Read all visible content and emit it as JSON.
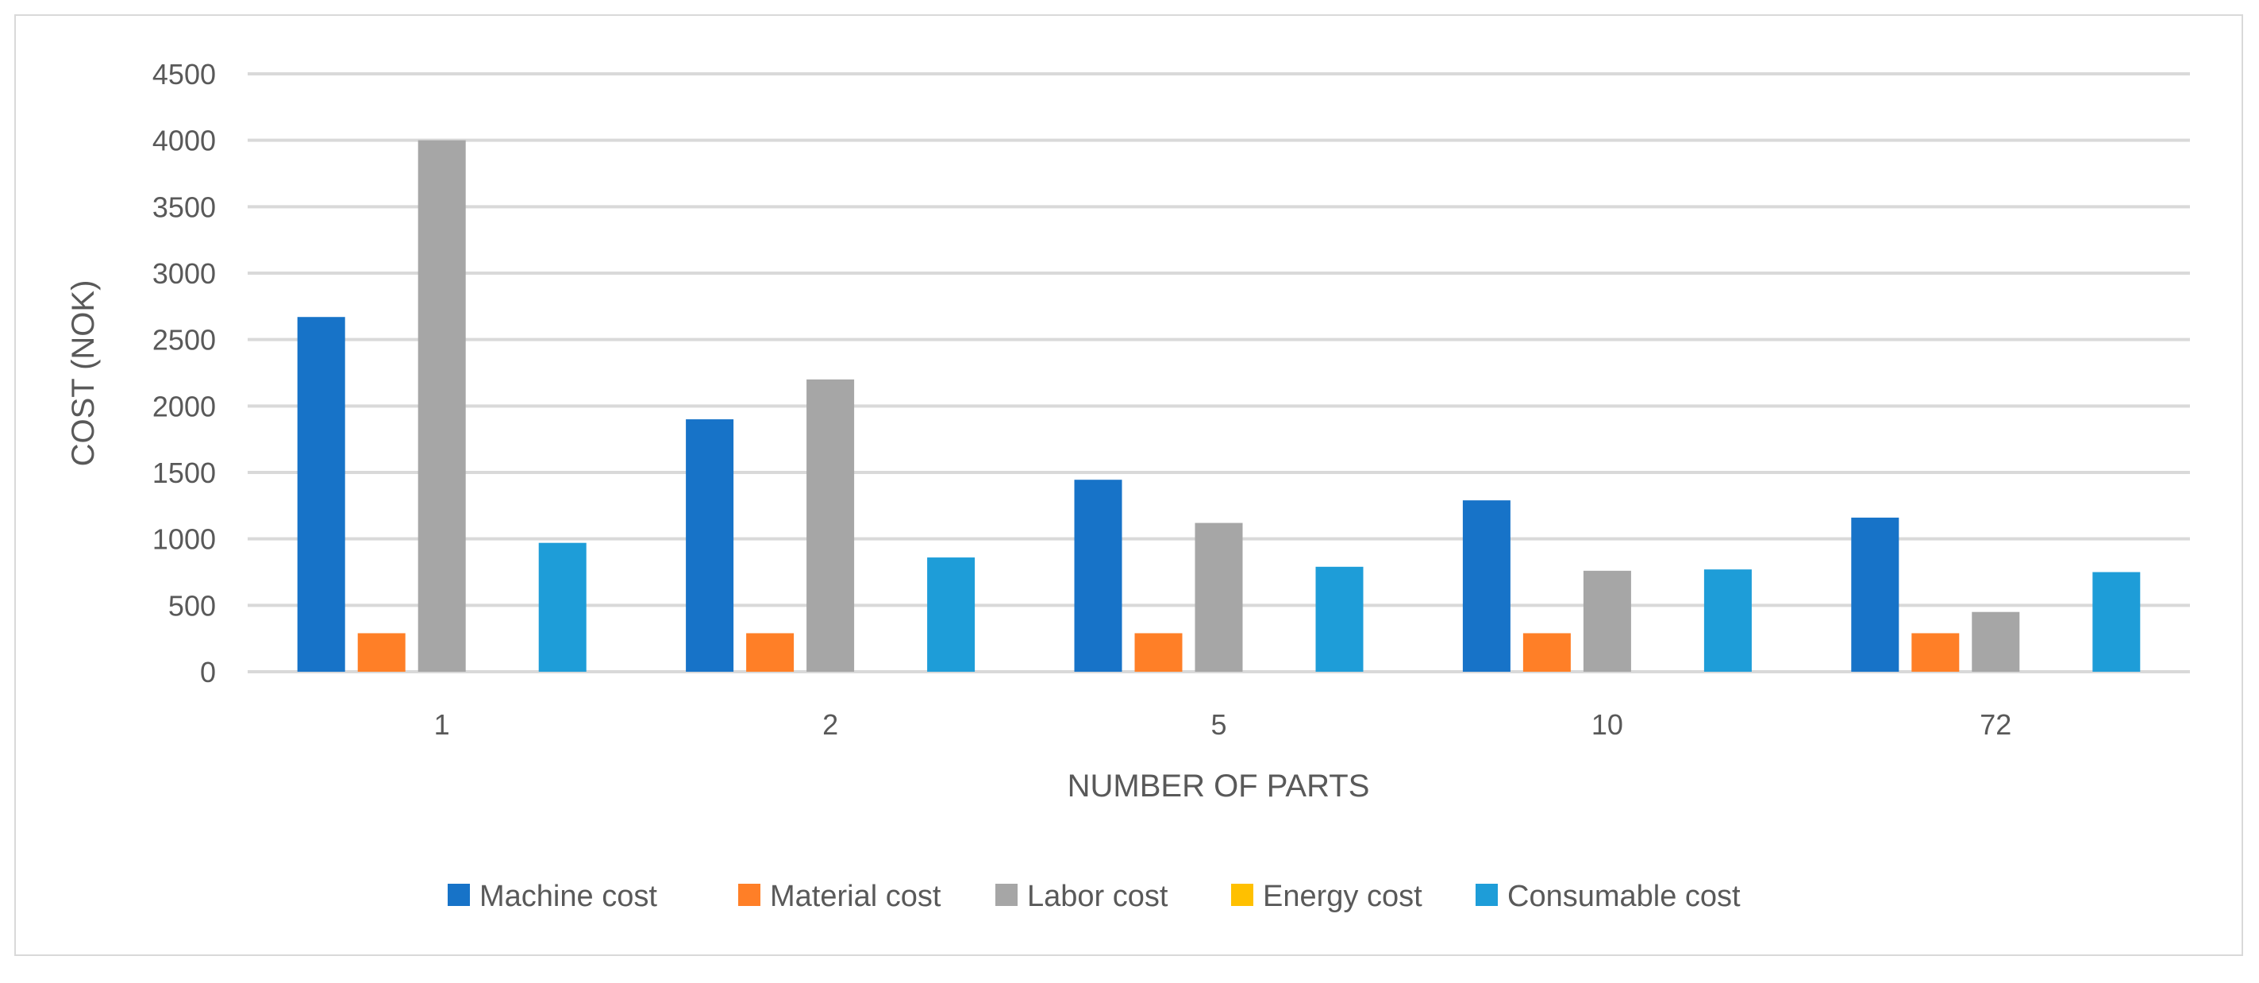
{
  "chart_data": {
    "type": "bar",
    "title": "",
    "xlabel": "NUMBER OF PARTS",
    "ylabel": "COST (NOK)",
    "ylim": [
      0,
      4500
    ],
    "yticks": [
      "0",
      "500",
      "1000",
      "1500",
      "2000",
      "2500",
      "3000",
      "3500",
      "4000",
      "4500"
    ],
    "grid": true,
    "legend_position": "bottom",
    "categories": [
      "1",
      "2",
      "5",
      "10",
      "72"
    ],
    "series": [
      {
        "name": "Machine cost",
        "color": "#1773C8",
        "values": [
          2670,
          1900,
          1445,
          1290,
          1160
        ]
      },
      {
        "name": "Material cost",
        "color": "#FF7F27",
        "values": [
          290,
          290,
          290,
          290,
          290
        ]
      },
      {
        "name": "Labor cost",
        "color": "#A6A6A6",
        "values": [
          4000,
          2200,
          1120,
          760,
          450
        ]
      },
      {
        "name": "Energy cost",
        "color": "#FFC000",
        "values": [
          0,
          0,
          0,
          0,
          0
        ]
      },
      {
        "name": "Consumable cost",
        "color": "#1E9DD8",
        "values": [
          970,
          860,
          790,
          770,
          750
        ]
      }
    ]
  }
}
